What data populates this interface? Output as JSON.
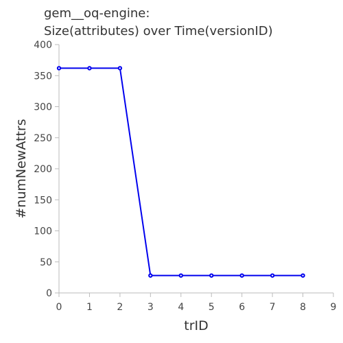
{
  "chart_data": {
    "type": "line",
    "title_lines": [
      "gem__oq-engine:",
      "Size(attributes) over Time(versionID)"
    ],
    "xlabel": "trID",
    "ylabel": "#numNewAttrs",
    "xlim": [
      0,
      9
    ],
    "ylim": [
      0,
      400
    ],
    "x_ticks": [
      0,
      1,
      2,
      3,
      4,
      5,
      6,
      7,
      8,
      9
    ],
    "y_ticks": [
      0,
      50,
      100,
      150,
      200,
      250,
      300,
      350,
      400
    ],
    "grid": false,
    "series": [
      {
        "x": [
          0,
          1,
          2,
          3,
          4,
          5,
          6,
          7,
          8
        ],
        "values": [
          362,
          362,
          362,
          28,
          28,
          28,
          28,
          28,
          28
        ],
        "color": "#0000ee"
      }
    ]
  }
}
